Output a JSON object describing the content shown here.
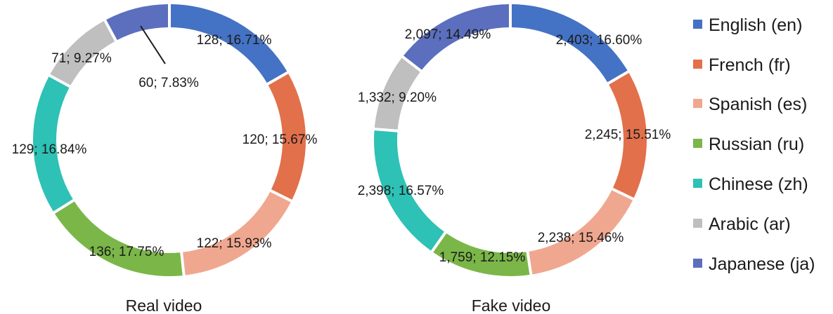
{
  "chart_data": [
    {
      "type": "pie",
      "variant": "donut",
      "caption": "Real video",
      "categories": [
        "English (en)",
        "French (fr)",
        "Spanish (es)",
        "Russian (ru)",
        "Chinese (zh)",
        "Arabic (ar)",
        "Japanese (ja)"
      ],
      "values": [
        128,
        120,
        122,
        136,
        129,
        71,
        60
      ],
      "labels": [
        "128; 16.71%",
        "120; 15.67%",
        "122; 15.93%",
        "136; 17.75%",
        "129; 16.84%",
        "71; 9.27%",
        "60; 7.83%"
      ]
    },
    {
      "type": "pie",
      "variant": "donut",
      "caption": "Fake video",
      "categories": [
        "English (en)",
        "French (fr)",
        "Spanish (es)",
        "Russian (ru)",
        "Chinese (zh)",
        "Arabic (ar)",
        "Japanese (ja)"
      ],
      "values": [
        2403,
        2245,
        2238,
        1759,
        2398,
        1332,
        2097
      ],
      "labels": [
        "2,403; 16.60%",
        "2,245; 15.51%",
        "2,238; 15.46%",
        "1,759; 12.15%",
        "2,398; 16.57%",
        "1,332; 9.20%",
        "2,097; 14.49%"
      ]
    }
  ],
  "legend": {
    "placement": "right",
    "items": [
      {
        "label": "English (en)",
        "color": "#4472C4"
      },
      {
        "label": "French (fr)",
        "color": "#E2704B"
      },
      {
        "label": "Spanish (es)",
        "color": "#F0A78F"
      },
      {
        "label": "Russian (ru)",
        "color": "#7AB648"
      },
      {
        "label": "Chinese (zh)",
        "color": "#2EC1B5"
      },
      {
        "label": "Arabic (ar)",
        "color": "#BFBFBF"
      },
      {
        "label": "Japanese (ja)",
        "color": "#5B6FBE"
      }
    ]
  }
}
